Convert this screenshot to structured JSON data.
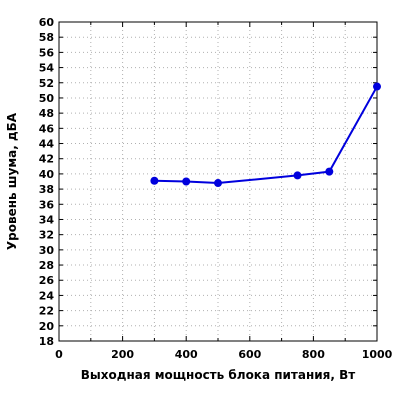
{
  "chart_data": {
    "type": "line",
    "title": "",
    "xlabel": "Выходная мощность блока питания, Вт",
    "ylabel": "Уровень шума, дБА",
    "xlim": [
      0,
      1000
    ],
    "ylim": [
      18,
      60
    ],
    "x_ticks": [
      0,
      200,
      400,
      600,
      800,
      1000
    ],
    "x_tick_labels": [
      "0",
      "200",
      "400",
      "600",
      "800",
      "1000"
    ],
    "x_minor_step": 100,
    "y_ticks": [
      18,
      20,
      22,
      24,
      26,
      28,
      30,
      32,
      34,
      36,
      38,
      40,
      42,
      44,
      46,
      48,
      50,
      52,
      54,
      56,
      58,
      60
    ],
    "y_tick_labels": [
      "18",
      "20",
      "22",
      "24",
      "26",
      "28",
      "30",
      "32",
      "34",
      "36",
      "38",
      "40",
      "42",
      "44",
      "46",
      "48",
      "50",
      "52",
      "54",
      "56",
      "58",
      "60"
    ],
    "grid": true,
    "legend": "none",
    "series": [
      {
        "color": "#0000dd",
        "x": [
          300,
          400,
          500,
          750,
          850,
          1000
        ],
        "values": [
          39.1,
          39.0,
          38.8,
          39.8,
          40.3,
          51.5
        ]
      }
    ]
  }
}
